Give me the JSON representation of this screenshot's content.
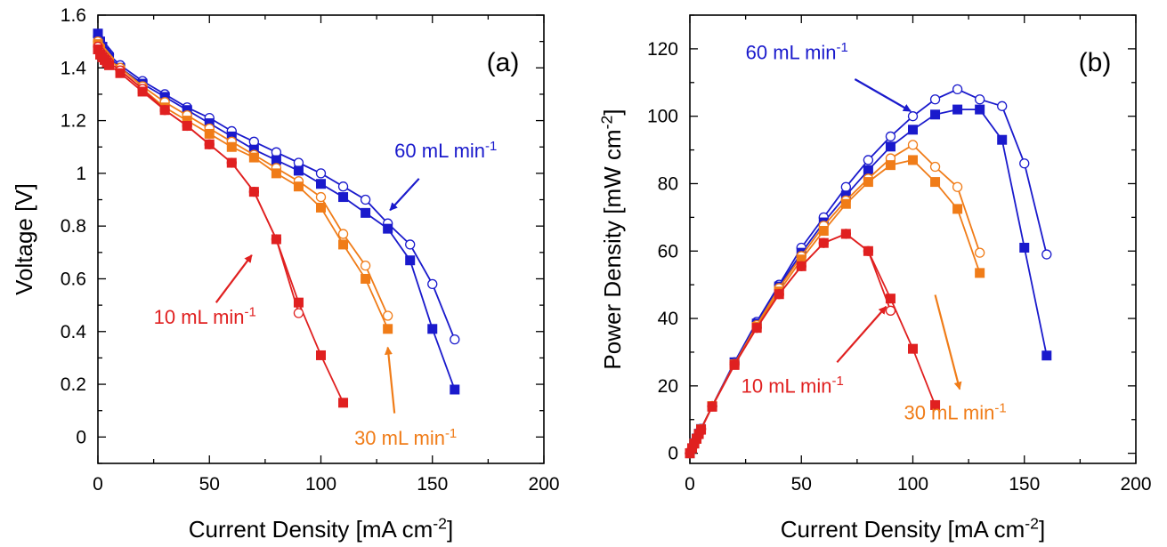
{
  "chart_data": [
    {
      "type": "line",
      "panel_label": "(a)",
      "xlabel": {
        "base": "Current Density [mA cm",
        "sup": "-2",
        "end": "]"
      },
      "ylabel": "Voltage [V]",
      "xlim": [
        0,
        200
      ],
      "ylim": [
        -0.1,
        1.6
      ],
      "xticks": [
        0,
        50,
        100,
        150,
        200
      ],
      "yticks": [
        0,
        0.2,
        0.4,
        0.6,
        0.8,
        1,
        1.2,
        1.4,
        1.6
      ],
      "grid": false,
      "series": [
        {
          "flow": "60 mL min-1",
          "color": "#1a1acc",
          "open": {
            "x": [
              0,
              1,
              2,
              3,
              4,
              5,
              10,
              20,
              30,
              40,
              50,
              60,
              70,
              80,
              90,
              100,
              110,
              120,
              130,
              140,
              150,
              160
            ],
            "y": [
              1.52,
              1.5,
              1.48,
              1.47,
              1.46,
              1.45,
              1.41,
              1.35,
              1.3,
              1.25,
              1.21,
              1.16,
              1.12,
              1.08,
              1.04,
              1.0,
              0.95,
              0.9,
              0.81,
              0.73,
              0.58,
              0.37
            ]
          },
          "filled": {
            "x": [
              0,
              1,
              2,
              3,
              4,
              5,
              10,
              20,
              30,
              40,
              50,
              60,
              70,
              80,
              90,
              100,
              110,
              120,
              130,
              140,
              150,
              160
            ],
            "y": [
              1.53,
              1.5,
              1.48,
              1.46,
              1.45,
              1.44,
              1.4,
              1.34,
              1.29,
              1.24,
              1.19,
              1.14,
              1.09,
              1.05,
              1.01,
              0.96,
              0.91,
              0.85,
              0.79,
              0.67,
              0.41,
              0.18
            ]
          }
        },
        {
          "flow": "30 mL min-1",
          "color": "#f07c18",
          "open": {
            "x": [
              0,
              1,
              2,
              3,
              4,
              5,
              10,
              20,
              30,
              40,
              50,
              60,
              70,
              80,
              90,
              100,
              110,
              120,
              130
            ],
            "y": [
              1.5,
              1.48,
              1.46,
              1.45,
              1.44,
              1.43,
              1.4,
              1.33,
              1.27,
              1.22,
              1.17,
              1.12,
              1.07,
              1.02,
              0.97,
              0.91,
              0.77,
              0.65,
              0.46
            ]
          },
          "filled": {
            "x": [
              0,
              1,
              2,
              3,
              4,
              5,
              10,
              20,
              30,
              40,
              50,
              60,
              70,
              80,
              90,
              100,
              110,
              120,
              130
            ],
            "y": [
              1.49,
              1.47,
              1.45,
              1.44,
              1.43,
              1.42,
              1.39,
              1.32,
              1.25,
              1.2,
              1.15,
              1.1,
              1.06,
              1.0,
              0.95,
              0.87,
              0.73,
              0.6,
              0.41
            ]
          }
        },
        {
          "flow": "10 mL min-1",
          "color": "#e02020",
          "open": {
            "x": [
              0,
              1,
              2,
              3,
              4,
              5,
              10,
              20,
              30,
              40,
              50,
              60,
              70,
              80,
              90
            ],
            "y": [
              1.48,
              1.46,
              1.45,
              1.44,
              1.43,
              1.42,
              1.39,
              1.32,
              1.24,
              1.18,
              1.11,
              1.04,
              0.93,
              0.75,
              0.47
            ]
          },
          "filled": {
            "x": [
              0,
              1,
              2,
              3,
              4,
              5,
              10,
              20,
              30,
              40,
              50,
              60,
              70,
              80,
              90,
              100,
              110
            ],
            "y": [
              1.47,
              1.45,
              1.44,
              1.43,
              1.42,
              1.41,
              1.38,
              1.31,
              1.24,
              1.18,
              1.11,
              1.04,
              0.93,
              0.75,
              0.51,
              0.31,
              0.13
            ]
          }
        }
      ],
      "annotations": [
        {
          "base": "60 mL min",
          "sup": "-1",
          "color": "#1a1acc",
          "tx": 133,
          "ty": 1.06,
          "arrow_from": [
            144,
            0.98
          ],
          "arrow_to": [
            131,
            0.86
          ]
        },
        {
          "base": "10 mL min",
          "sup": "-1",
          "color": "#e02020",
          "tx": 25,
          "ty": 0.43,
          "arrow_from": [
            53,
            0.51
          ],
          "arrow_to": [
            69,
            0.69
          ]
        },
        {
          "base": "30 mL min",
          "sup": "-1",
          "color": "#f07c18",
          "tx": 115,
          "ty": -0.03,
          "arrow_from": [
            133,
            0.09
          ],
          "arrow_to": [
            130,
            0.34
          ]
        }
      ]
    },
    {
      "type": "line",
      "panel_label": "(b)",
      "xlabel": {
        "base": "Current Density [mA cm",
        "sup": "-2",
        "end": "]"
      },
      "ylabel": {
        "base": "Power Density [mW cm",
        "sup": "-2",
        "end": "]"
      },
      "xlim": [
        0,
        200
      ],
      "ylim": [
        -3,
        130
      ],
      "xticks": [
        0,
        50,
        100,
        150,
        200
      ],
      "yticks": [
        0,
        20,
        40,
        60,
        80,
        100,
        120
      ],
      "grid": false,
      "series": [
        {
          "flow": "60 mL min-1",
          "color": "#1a1acc",
          "open": {
            "x": [
              0,
              1,
              2,
              3,
              4,
              5,
              10,
              20,
              30,
              40,
              50,
              60,
              70,
              80,
              90,
              100,
              110,
              120,
              130,
              140,
              150,
              160
            ],
            "y": [
              0,
              1.5,
              3,
              4.4,
              5.8,
              7.3,
              14,
              27,
              39,
              50,
              61,
              70,
              79,
              87,
              94,
              100,
              105,
              108,
              105,
              103,
              86,
              59
            ]
          },
          "filled": {
            "x": [
              0,
              1,
              2,
              3,
              4,
              5,
              10,
              20,
              30,
              40,
              50,
              60,
              70,
              80,
              90,
              100,
              110,
              120,
              130,
              140,
              150,
              160
            ],
            "y": [
              0,
              1.5,
              3,
              4.4,
              5.8,
              7.2,
              14,
              27,
              38.5,
              49.5,
              59.5,
              68.5,
              76.5,
              84,
              91,
              96,
              100.5,
              102,
              102,
              93,
              61,
              29
            ]
          }
        },
        {
          "flow": "30 mL min-1",
          "color": "#f07c18",
          "open": {
            "x": [
              0,
              1,
              2,
              3,
              4,
              5,
              10,
              20,
              30,
              40,
              50,
              60,
              70,
              80,
              90,
              100,
              110,
              120,
              130
            ],
            "y": [
              0,
              1.5,
              2.9,
              4.3,
              5.8,
              7.2,
              14,
              26.5,
              38,
              49,
              58.5,
              67.5,
              75,
              81.5,
              87.5,
              91.5,
              85,
              79,
              59.5
            ]
          },
          "filled": {
            "x": [
              0,
              1,
              2,
              3,
              4,
              5,
              10,
              20,
              30,
              40,
              50,
              60,
              70,
              80,
              90,
              100,
              110,
              120,
              130
            ],
            "y": [
              0,
              1.5,
              2.9,
              4.3,
              5.7,
              7.1,
              14,
              26.4,
              37.5,
              48,
              57.5,
              66,
              74,
              80.5,
              85.5,
              87,
              80.5,
              72.5,
              53.5
            ]
          }
        },
        {
          "flow": "10 mL min-1",
          "color": "#e02020",
          "open": {
            "x": [
              0,
              1,
              2,
              3,
              4,
              5,
              10,
              20,
              30,
              40,
              50,
              60,
              70,
              80,
              90
            ],
            "y": [
              0,
              1.5,
              2.9,
              4.3,
              5.7,
              7.1,
              13.9,
              26.4,
              37.2,
              47.2,
              55.5,
              62.4,
              65.1,
              60,
              42.3
            ]
          },
          "filled": {
            "x": [
              0,
              1,
              2,
              3,
              4,
              5,
              10,
              20,
              30,
              40,
              50,
              60,
              70,
              80,
              90,
              100,
              110
            ],
            "y": [
              0,
              1.5,
              2.9,
              4.3,
              5.7,
              7,
              13.8,
              26.2,
              37.2,
              47.2,
              55.5,
              62.4,
              65.1,
              60,
              45.9,
              31,
              14.3
            ]
          }
        }
      ],
      "annotations": [
        {
          "base": "60 mL min",
          "sup": "-1",
          "color": "#1a1acc",
          "tx": 25,
          "ty": 117,
          "arrow_from": [
            74,
            111
          ],
          "arrow_to": [
            99,
            101.5
          ]
        },
        {
          "base": "10 mL min",
          "sup": "-1",
          "color": "#e02020",
          "tx": 23,
          "ty": 18,
          "arrow_from": [
            66,
            27
          ],
          "arrow_to": [
            88,
            43.5
          ]
        },
        {
          "base": "30 mL min",
          "sup": "-1",
          "color": "#f07c18",
          "tx": 96,
          "ty": 10,
          "arrow_from": [
            110,
            47
          ],
          "arrow_to": [
            121,
            19
          ]
        }
      ]
    }
  ]
}
